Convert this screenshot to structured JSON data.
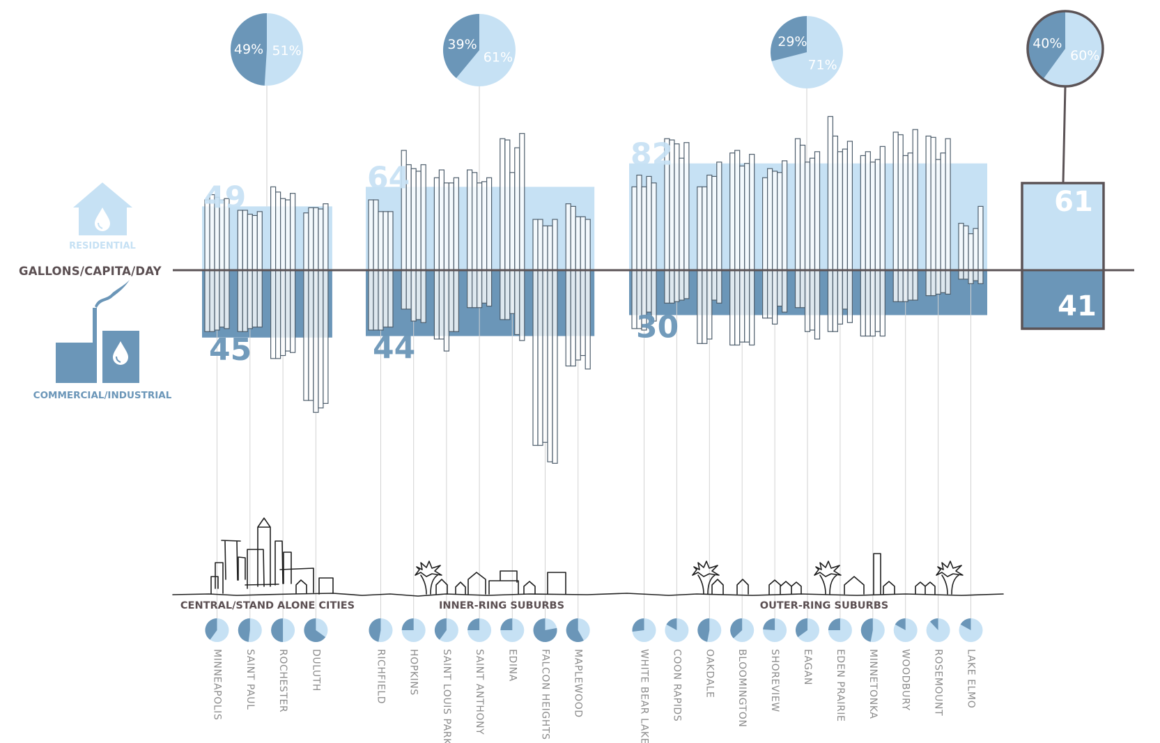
{
  "axis_label": "GALLONS/CAPITA/DAY",
  "legend": {
    "residential": "RESIDENTIAL",
    "commercial": "COMMERCIAL/INDUSTRIAL",
    "residential_icon": "house-water-drop-icon",
    "commercial_icon": "factory-water-drop-icon"
  },
  "colors": {
    "residential": "#c6e1f4",
    "commercial": "#6b96b8",
    "axis": "#5b5356",
    "bar_stroke": "#4d5d6b",
    "text_dark": "#5b4f52",
    "text_gray": "#8c8c8c"
  },
  "chart_data": {
    "type": "bar",
    "ylabel": "GALLONS/CAPITA/DAY",
    "orientation": "diverging: residential above axis, commercial/industrial below axis",
    "groups": [
      {
        "name": "CENTRAL/STAND ALONE CITIES",
        "residential_avg": 49,
        "commercial_avg": 45,
        "residential_share": "51%",
        "commercial_share": "49%",
        "cities": [
          {
            "name": "MINNEAPOLIS",
            "commercial_share_pct": 40,
            "residential": [
              54,
              58,
              56,
              54,
              55
            ],
            "commercial": [
              41,
              41,
              40,
              38,
              39
            ]
          },
          {
            "name": "SAINT PAUL",
            "commercial_share_pct": 48,
            "residential": [
              46,
              46,
              43,
              42,
              45
            ],
            "commercial": [
              41,
              41,
              39,
              38,
              38
            ]
          },
          {
            "name": "ROCHESTER",
            "commercial_share_pct": 50,
            "residential": [
              64,
              60,
              55,
              54,
              59
            ],
            "commercial": [
              59,
              59,
              57,
              54,
              55
            ]
          },
          {
            "name": "DULUTH",
            "commercial_share_pct": 65,
            "residential": [
              44,
              48,
              48,
              47,
              51
            ],
            "commercial": [
              87,
              87,
              95,
              92,
              89
            ]
          }
        ]
      },
      {
        "name": "INNER-RING SUBURBS",
        "residential_avg": 64,
        "commercial_avg": 44,
        "residential_share": "61%",
        "commercial_share": "39%",
        "cities": [
          {
            "name": "RICHFIELD",
            "commercial_share_pct": 47,
            "residential": [
              54,
              54,
              45,
              45,
              45
            ],
            "commercial": [
              40,
              40,
              40,
              38,
              38
            ]
          },
          {
            "name": "HOPKINS",
            "commercial_share_pct": 25,
            "residential": [
              92,
              81,
              78,
              76,
              81
            ],
            "commercial": [
              26,
              26,
              34,
              33,
              35
            ]
          },
          {
            "name": "SAINT LOUIS PARK",
            "commercial_share_pct": 40,
            "residential": [
              71,
              77,
              67,
              67,
              71
            ],
            "commercial": [
              46,
              46,
              54,
              41,
              41
            ]
          },
          {
            "name": "SAINT ANTHONY",
            "commercial_share_pct": 25,
            "residential": [
              77,
              75,
              67,
              68,
              71
            ],
            "commercial": [
              25,
              25,
              25,
              22,
              24
            ]
          },
          {
            "name": "EDINA",
            "commercial_share_pct": 25,
            "residential": [
              101,
              100,
              75,
              94,
              105
            ],
            "commercial": [
              33,
              33,
              29,
              43,
              47
            ]
          },
          {
            "name": "FALCON HEIGHTS",
            "commercial_share_pct": 78,
            "residential": [
              39,
              39,
              34,
              34,
              39
            ],
            "commercial": [
              117,
              117,
              115,
              128,
              129
            ]
          },
          {
            "name": "MAPLEWOOD",
            "commercial_share_pct": 58,
            "residential": [
              51,
              49,
              41,
              41,
              39
            ],
            "commercial": [
              64,
              64,
              60,
              57,
              66
            ]
          }
        ]
      },
      {
        "name": "OUTER-RING SUBURBS",
        "residential_avg": 82,
        "commercial_avg": 30,
        "residential_share": "71%",
        "commercial_share": "29%",
        "cities": [
          {
            "name": "WHITE BEAR LAKE",
            "commercial_share_pct": 27,
            "residential": [
              64,
              73,
              64,
              72,
              67
            ],
            "commercial": [
              39,
              39,
              40,
              28,
              34
            ]
          },
          {
            "name": "COON RAPIDS",
            "commercial_share_pct": 17,
            "residential": [
              101,
              100,
              97,
              86,
              98
            ],
            "commercial": [
              22,
              22,
              21,
              20,
              19
            ]
          },
          {
            "name": "OAKDALE",
            "commercial_share_pct": 47,
            "residential": [
              64,
              64,
              73,
              72,
              83
            ],
            "commercial": [
              49,
              49,
              46,
              20,
              22
            ]
          },
          {
            "name": "BLOOMINGTON",
            "commercial_share_pct": 37,
            "residential": [
              90,
              92,
              80,
              82,
              89
            ],
            "commercial": [
              50,
              50,
              48,
              48,
              50
            ]
          },
          {
            "name": "SHOREVIEW",
            "commercial_share_pct": 24,
            "residential": [
              71,
              78,
              76,
              75,
              84
            ],
            "commercial": [
              32,
              32,
              36,
              24,
              28
            ]
          },
          {
            "name": "EAGAN",
            "commercial_share_pct": 35,
            "residential": [
              101,
              96,
              83,
              86,
              91
            ],
            "commercial": [
              25,
              25,
              41,
              40,
              46
            ]
          },
          {
            "name": "EDEN PRAIRIE",
            "commercial_share_pct": 25,
            "residential": [
              118,
              103,
              91,
              93,
              99
            ],
            "commercial": [
              41,
              41,
              36,
              26,
              35
            ]
          },
          {
            "name": "MINNETONKA",
            "commercial_share_pct": 47,
            "residential": [
              88,
              91,
              83,
              85,
              95
            ],
            "commercial": [
              44,
              44,
              44,
              41,
              44
            ]
          },
          {
            "name": "WOODBURY",
            "commercial_share_pct": 17,
            "residential": [
              106,
              104,
              88,
              90,
              108
            ],
            "commercial": [
              21,
              21,
              21,
              20,
              20
            ]
          },
          {
            "name": "ROSEMOUNT",
            "commercial_share_pct": 12,
            "residential": [
              103,
              102,
              85,
              90,
              101
            ],
            "commercial": [
              17,
              17,
              16,
              15,
              16
            ]
          },
          {
            "name": "LAKE ELMO",
            "commercial_share_pct": 17,
            "residential": [
              36,
              34,
              28,
              32,
              49
            ],
            "commercial": [
              6,
              6,
              9,
              7,
              9
            ]
          }
        ]
      }
    ],
    "overall": {
      "residential_avg": 61,
      "commercial_avg": 41,
      "residential_share": "60%",
      "commercial_share": "40%"
    }
  }
}
